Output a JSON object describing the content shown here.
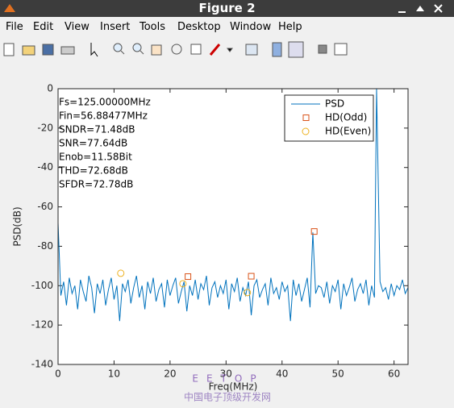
{
  "window": {
    "title": "Figure 2",
    "menu": [
      "File",
      "Edit",
      "View",
      "Insert",
      "Tools",
      "Desktop",
      "Window",
      "Help"
    ]
  },
  "chart_data": {
    "type": "line",
    "xlabel": "Freq(MHz)",
    "ylabel": "PSD(dB)",
    "annotations": [
      "Fs=125.00000MHz",
      "Fin=56.88477MHz",
      "SNDR=71.48dB",
      "SNR=77.64dB",
      "Enob=11.58Bit",
      "THD=72.68dB",
      "SFDR=72.78dB"
    ],
    "xlim": [
      0,
      62.5
    ],
    "ylim": [
      -140,
      0
    ],
    "xticks": [
      0,
      10,
      20,
      30,
      40,
      50,
      60
    ],
    "yticks": [
      0,
      -20,
      -40,
      -60,
      -80,
      -100,
      -120,
      -140
    ],
    "legend": "upper right",
    "series": [
      {
        "name": "PSD",
        "color": "#0072bd",
        "marker": "none",
        "x": [
          0,
          0.5,
          1,
          1.5,
          2,
          2.5,
          3,
          3.5,
          4,
          4.5,
          5,
          5.5,
          6,
          6.5,
          7,
          7.5,
          8,
          8.5,
          9,
          9.5,
          10,
          10.5,
          11,
          11.5,
          12,
          12.5,
          13,
          13.5,
          14,
          14.5,
          15,
          15.5,
          16,
          16.5,
          17,
          17.5,
          18,
          18.5,
          19,
          19.5,
          20,
          20.5,
          21,
          21.5,
          22,
          22.5,
          23,
          23.5,
          24,
          24.5,
          25,
          25.5,
          26,
          26.5,
          27,
          27.5,
          28,
          28.5,
          29,
          29.5,
          30,
          30.5,
          31,
          31.5,
          32,
          32.5,
          33,
          33.5,
          34,
          34.5,
          35,
          35.5,
          36,
          36.5,
          37,
          37.5,
          38,
          38.5,
          39,
          39.5,
          40,
          40.5,
          41,
          41.5,
          42,
          42.5,
          43,
          43.5,
          44,
          44.5,
          45,
          45.5,
          46,
          46.5,
          47,
          47.5,
          48,
          48.5,
          49,
          49.5,
          50,
          50.5,
          51,
          51.5,
          52,
          52.5,
          53,
          53.5,
          54,
          54.5,
          55,
          55.5,
          56,
          56.5,
          56.88,
          57.5,
          58,
          58.5,
          59,
          59.5,
          60,
          60.5,
          61,
          61.5,
          62,
          62.5
        ],
        "values": [
          -68,
          -105,
          -98,
          -110,
          -96,
          -104,
          -100,
          -112,
          -97,
          -103,
          -108,
          -95,
          -101,
          -114,
          -99,
          -104,
          -97,
          -110,
          -102,
          -96,
          -107,
          -100,
          -118,
          -99,
          -103,
          -97,
          -109,
          -101,
          -95,
          -106,
          -100,
          -112,
          -98,
          -104,
          -96,
          -108,
          -102,
          -99,
          -111,
          -97,
          -105,
          -100,
          -96,
          -109,
          -103,
          -98,
          -113,
          -100,
          -105,
          -97,
          -107,
          -99,
          -102,
          -95,
          -110,
          -101,
          -98,
          -106,
          -100,
          -104,
          -97,
          -112,
          -99,
          -103,
          -96,
          -108,
          -101,
          -105,
          -98,
          -115,
          -100,
          -97,
          -106,
          -102,
          -99,
          -110,
          -96,
          -104,
          -101,
          -107,
          -98,
          -103,
          -100,
          -118,
          -97,
          -105,
          -99,
          -108,
          -102,
          -96,
          -111,
          -73,
          -104,
          -100,
          -101,
          -106,
          -98,
          -109,
          -100,
          -103,
          -97,
          -112,
          -99,
          -105,
          -101,
          -96,
          -108,
          -102,
          -99,
          -104,
          -97,
          -110,
          -100,
          -106,
          0,
          -98,
          -103,
          -101,
          -107,
          -99,
          -105,
          -100,
          -102,
          -97,
          -104,
          -101
        ]
      },
      {
        "name": "HD(Odd)",
        "color": "#d95319",
        "marker": "square",
        "x": [
          23.2,
          34.5,
          45.75
        ],
        "values": [
          -95.4,
          -95.2,
          -72.5
        ]
      },
      {
        "name": "HD(Even)",
        "color": "#edb120",
        "marker": "circle",
        "x": [
          11.2,
          22.3,
          33.8
        ],
        "values": [
          -93.7,
          -99,
          -103.5
        ]
      }
    ]
  },
  "watermark": {
    "logo": "EETOP",
    "text": "中国电子顶级开发网"
  }
}
